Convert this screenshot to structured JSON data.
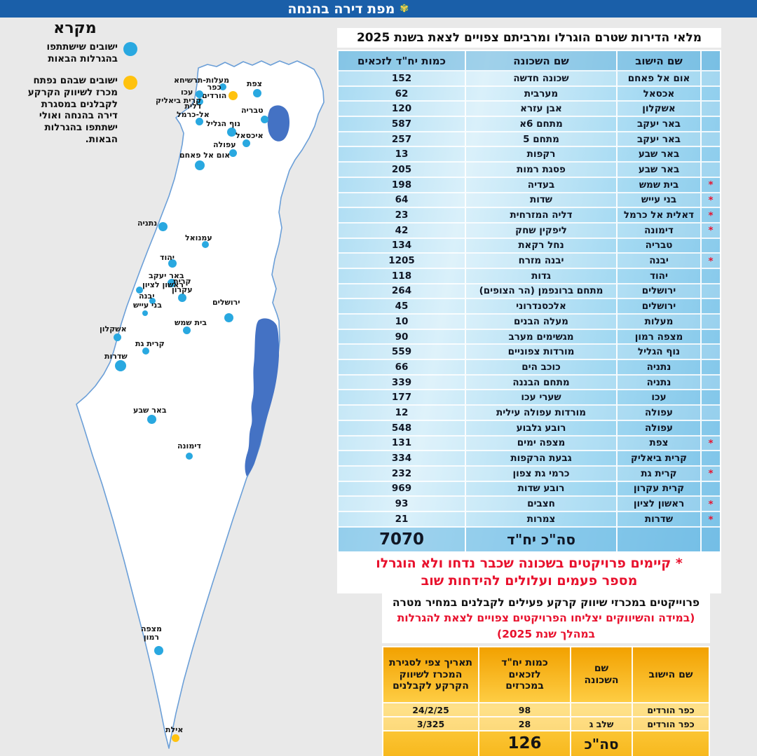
{
  "title_bar": {
    "title": "מפת דירה בהנחה",
    "emblem_icon": "✾",
    "bar_color": "#1a5fa9"
  },
  "legend": {
    "title": "מקרא",
    "entries": [
      {
        "color": "#29a8e0",
        "text": "ישובים שישתתפו\nבהגרלות הבאות"
      },
      {
        "color": "#ffc20e",
        "text": "ישובים שבהם נפתח\nמכרז לשיווק הקרקע\nלקבלנים במסגרת\nדירה בהנחה ואולי\nישתתפו בהגרלות\nהבאות."
      }
    ]
  },
  "map": {
    "colors": {
      "upcoming": "#29a8e0",
      "open_tender": "#ffc20e",
      "water": "#4472c4",
      "land": "#ffffff",
      "border": "#6b9fd8"
    },
    "water_bodies": [
      "כנרת",
      "ים המלח"
    ],
    "markers": [
      {
        "label": "מעלות-תרשיחא",
        "color": "blue",
        "dot": [
          318,
          124
        ],
        "size": 10,
        "lpos": [
          248,
          109
        ]
      },
      {
        "label": "כפר\nהורדים",
        "color": "yellow",
        "dot": [
          332,
          136
        ],
        "size": 13,
        "lpos": [
          288,
          119
        ]
      },
      {
        "label": "עכו",
        "color": "blue",
        "dot": [
          284,
          134
        ],
        "size": 11,
        "lpos": [
          258,
          126
        ]
      },
      {
        "label": "קרית ביאליק",
        "color": "blue",
        "dot": [
          285,
          145
        ],
        "size": 10,
        "lpos": [
          222,
          138
        ]
      },
      {
        "label": "צפת",
        "color": "blue",
        "dot": [
          367,
          133
        ],
        "size": 12,
        "lpos": [
          352,
          114
        ]
      },
      {
        "label": "טבריה",
        "color": "blue",
        "dot": [
          377,
          170
        ],
        "size": 11,
        "lpos": [
          344,
          152
        ]
      },
      {
        "label": "דלית\nאל-כרמל",
        "color": "blue",
        "dot": [
          284,
          173
        ],
        "size": 11,
        "lpos": [
          252,
          146
        ]
      },
      {
        "label": "נוף הגליל",
        "color": "blue",
        "dot": [
          330,
          188
        ],
        "size": 13,
        "lpos": [
          294,
          171
        ]
      },
      {
        "label": "איכסאל",
        "color": "blue",
        "dot": [
          351,
          204
        ],
        "size": 11,
        "lpos": [
          336,
          188
        ]
      },
      {
        "label": "עפולה",
        "color": "blue",
        "dot": [
          332,
          218
        ],
        "size": 11,
        "lpos": [
          304,
          201
        ]
      },
      {
        "label": "אום אל פאחם",
        "color": "blue",
        "dot": [
          285,
          236
        ],
        "size": 14,
        "lpos": [
          256,
          216
        ]
      },
      {
        "label": "נתניה",
        "color": "blue",
        "dot": [
          232,
          323
        ],
        "size": 13,
        "lpos": [
          196,
          313
        ]
      },
      {
        "label": "עמנואל",
        "color": "blue",
        "dot": [
          293,
          349
        ],
        "size": 10,
        "lpos": [
          264,
          334
        ]
      },
      {
        "label": "יהוד",
        "color": "blue",
        "dot": [
          246,
          376
        ],
        "size": 12,
        "lpos": [
          228,
          362
        ]
      },
      {
        "label": "באר יעקב",
        "color": "blue",
        "dot": [
          245,
          404
        ],
        "size": 12,
        "lpos": [
          212,
          388
        ]
      },
      {
        "label": "קרית\nעקרון",
        "color": "blue",
        "dot": [
          260,
          425
        ],
        "size": 12,
        "lpos": [
          245,
          396
        ]
      },
      {
        "label": "ראשון לציון",
        "color": "blue",
        "dot": [
          199,
          414
        ],
        "size": 10,
        "lpos": [
          203,
          401
        ]
      },
      {
        "label": "יבנה",
        "color": "blue",
        "dot": [
          217,
          429
        ],
        "size": 9,
        "lpos": [
          198,
          417
        ]
      },
      {
        "label": "בני עייש",
        "color": "blue",
        "dot": [
          207,
          447
        ],
        "size": 8,
        "lpos": [
          190,
          430
        ]
      },
      {
        "label": "ירושלים",
        "color": "blue",
        "dot": [
          326,
          453
        ],
        "size": 13,
        "lpos": [
          303,
          426
        ]
      },
      {
        "label": "בית שמש",
        "color": "blue",
        "dot": [
          266,
          471
        ],
        "size": 11,
        "lpos": [
          249,
          455
        ]
      },
      {
        "label": "אשקלון",
        "color": "blue",
        "dot": [
          167,
          481
        ],
        "size": 11,
        "lpos": [
          142,
          464
        ]
      },
      {
        "label": "קרית גת",
        "color": "blue",
        "dot": [
          208,
          501
        ],
        "size": 10,
        "lpos": [
          193,
          485
        ]
      },
      {
        "label": "שדרות",
        "color": "blue",
        "dot": [
          172,
          522
        ],
        "size": 16,
        "lpos": [
          149,
          503
        ]
      },
      {
        "label": "באר שבע",
        "color": "blue",
        "dot": [
          216,
          598
        ],
        "size": 13,
        "lpos": [
          190,
          580
        ]
      },
      {
        "label": "דימונה",
        "color": "blue",
        "dot": [
          270,
          651
        ],
        "size": 10,
        "lpos": [
          253,
          631
        ]
      },
      {
        "label": "מצפה\nרמון",
        "color": "blue",
        "dot": [
          226,
          928
        ],
        "size": 13,
        "lpos": [
          201,
          892
        ]
      },
      {
        "label": "אילת",
        "color": "yellow",
        "dot": [
          250,
          1053
        ],
        "size": 11,
        "lpos": [
          236,
          1036
        ]
      }
    ]
  },
  "main_table": {
    "title": "מלאי הדירות שטרם הוגרלו ומרביתם צפויים לצאת בשנת 2025",
    "headers": {
      "settlement": "שם הישוב",
      "neighborhood": "שם השכונה",
      "units": "כמות יח\"ד לזכאים"
    },
    "rows": [
      {
        "settlement": "אום אל פאחם",
        "neighborhood": "שכונה חדשה",
        "units": "152",
        "flag": false
      },
      {
        "settlement": "אכסאל",
        "neighborhood": "מערבית",
        "units": "62",
        "flag": false
      },
      {
        "settlement": "אשקלון",
        "neighborhood": "אבן עזרא",
        "units": "120",
        "flag": false
      },
      {
        "settlement": "באר יעקב",
        "neighborhood": "מתחם 6א",
        "units": "587",
        "flag": false
      },
      {
        "settlement": "באר יעקב",
        "neighborhood": "מתחם 5",
        "units": "257",
        "flag": false
      },
      {
        "settlement": "באר שבע",
        "neighborhood": "רקפות",
        "units": "13",
        "flag": false
      },
      {
        "settlement": "באר שבע",
        "neighborhood": "פסגת רמות",
        "units": "205",
        "flag": false
      },
      {
        "settlement": "בית שמש",
        "neighborhood": "בעדיה",
        "units": "198",
        "flag": true
      },
      {
        "settlement": "בני עייש",
        "neighborhood": "שדות",
        "units": "64",
        "flag": true
      },
      {
        "settlement": "דאלית אל כרמל",
        "neighborhood": "דליה המזרחית",
        "units": "23",
        "flag": true
      },
      {
        "settlement": "דימונה",
        "neighborhood": "ליפקין שחק",
        "units": "42",
        "flag": true
      },
      {
        "settlement": "טבריה",
        "neighborhood": "נחל רקאת",
        "units": "134",
        "flag": false
      },
      {
        "settlement": "יבנה",
        "neighborhood": "יבנה מזרח",
        "units": "1205",
        "flag": true
      },
      {
        "settlement": "יהוד",
        "neighborhood": "גדות",
        "units": "118",
        "flag": false
      },
      {
        "settlement": "ירושלים",
        "neighborhood": "מתחם ברונפמן (הר הצופים)",
        "units": "264",
        "flag": false
      },
      {
        "settlement": "ירושלים",
        "neighborhood": "אלכסנדרוני",
        "units": "45",
        "flag": false
      },
      {
        "settlement": "מעלות",
        "neighborhood": "מעלה הבנים",
        "units": "10",
        "flag": false
      },
      {
        "settlement": "מצפה רמון",
        "neighborhood": "מגשימים מערב",
        "units": "90",
        "flag": false
      },
      {
        "settlement": "נוף הגליל",
        "neighborhood": "מורדות צפוניים",
        "units": "559",
        "flag": false
      },
      {
        "settlement": "נתניה",
        "neighborhood": "כוכב הים",
        "units": "66",
        "flag": false
      },
      {
        "settlement": "נתניה",
        "neighborhood": "מתחם הבננה",
        "units": "339",
        "flag": false
      },
      {
        "settlement": "עכו",
        "neighborhood": "שערי עכו",
        "units": "177",
        "flag": false
      },
      {
        "settlement": "עפולה",
        "neighborhood": "מורדות עפולה עילית",
        "units": "12",
        "flag": false
      },
      {
        "settlement": "עפולה",
        "neighborhood": "רובע גלבוע",
        "units": "548",
        "flag": false
      },
      {
        "settlement": "צפת",
        "neighborhood": "מצפה ימים",
        "units": "131",
        "flag": true
      },
      {
        "settlement": "קרית ביאליק",
        "neighborhood": "גבעת הרקפות",
        "units": "334",
        "flag": false
      },
      {
        "settlement": "קרית גת",
        "neighborhood": "כרמי גת צפון",
        "units": "232",
        "flag": true
      },
      {
        "settlement": "קרית עקרון",
        "neighborhood": "רובע שדות",
        "units": "969",
        "flag": false
      },
      {
        "settlement": "ראשון לציון",
        "neighborhood": "חצבים",
        "units": "93",
        "flag": true
      },
      {
        "settlement": "שדרות",
        "neighborhood": "צמרות",
        "units": "21",
        "flag": true
      }
    ],
    "total_label": "סה\"כ יח\"ד",
    "total_units": "7070"
  },
  "footnote": {
    "text": "* קיימים פרויקטים בשכונה שכבר נדחו ולא הוגרלו\nמספר פעמים ועלולים להידחות שוב",
    "color": "#e8112d"
  },
  "bottom_section": {
    "heading_black": "פרוייקטים במכרזי שיווק קרקע פעילים לקבלנים במחיר מטרה ",
    "heading_red": "(במידה והשיווקים יצליחו הפרויקטים צפויים לצאת להגרלות במהלך שנת 2025)",
    "table": {
      "headers": {
        "settlement": "שם הישוב",
        "neighborhood": "שם\nהשכונה",
        "units": "כמות יח\"ד\nלזכאים\nבמכרזים",
        "date": "תאריך צפי לסגירת\nהמכרז לשיווק\nהקרקע לקבלנים"
      },
      "rows": [
        {
          "settlement": "כפר הורדים",
          "neighborhood": "",
          "units": "98",
          "date": "24/2/25"
        },
        {
          "settlement": "כפר הורדים",
          "neighborhood": "שלב ג",
          "units": "28",
          "date": "3/325"
        }
      ],
      "total_label": "סה\"כ",
      "total_units": "126"
    }
  }
}
